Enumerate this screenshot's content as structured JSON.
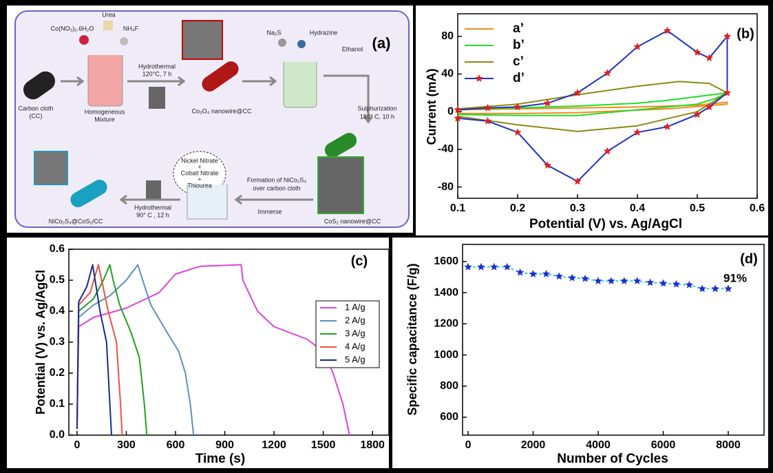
{
  "diagram": {
    "labels": [
      "Co(NO₃)₂.6H₂O",
      "Urea",
      "NH₄F",
      "Carbon cloth",
      "(CC)",
      "Homogeneous",
      "Mixture",
      "Hydrothermal",
      "120°C, 7 h",
      "Co₃O₄ nanowire@CC",
      "Na₂S",
      "Hydrazine",
      "Ethanol",
      "(a)",
      "Sulphurization",
      "180° C, 10 h",
      "Nickel Nitrate",
      "+",
      "Cobalt Nitrate",
      "+",
      "Thiourea",
      "Formation of NiCo₂S₄",
      "over carbon cloth",
      "Immerse",
      "CoS₂ nanowire@CC",
      "Hydrothermal",
      "90° C , 12 h",
      "NiCo₂S₄@CoS₂/CC"
    ]
  },
  "chart_data": [
    {
      "type": "line",
      "panel_label": "(b)",
      "x_label": "Potential (V) vs. Ag/AgCl",
      "y_label": "Current (mA)",
      "xlim": [
        0.1,
        0.6
      ],
      "xticks": [
        0.1,
        0.2,
        0.3,
        0.4,
        0.5,
        0.6
      ],
      "ylim": [
        -92,
        104
      ],
      "yticks": [
        -80,
        -40,
        0,
        40,
        80
      ],
      "legend": "upper left",
      "series": [
        {
          "name": "a’",
          "color": "#f08a20",
          "x": [
            0.1,
            0.2,
            0.3,
            0.4,
            0.5,
            0.55,
            0.55,
            0.45,
            0.3,
            0.2,
            0.1
          ],
          "values": [
            2,
            3,
            4,
            5,
            7,
            10,
            8,
            3,
            -1,
            -2,
            -2
          ]
        },
        {
          "name": "b’",
          "color": "#22dd22",
          "x": [
            0.1,
            0.2,
            0.3,
            0.4,
            0.45,
            0.5,
            0.55,
            0.53,
            0.5,
            0.4,
            0.3,
            0.2,
            0.1
          ],
          "values": [
            3,
            4,
            6,
            9,
            12,
            16,
            20,
            14,
            8,
            2,
            -4,
            -4,
            -3
          ]
        },
        {
          "name": "c’",
          "color": "#8a8a10",
          "x": [
            0.1,
            0.2,
            0.3,
            0.4,
            0.47,
            0.52,
            0.55,
            0.5,
            0.4,
            0.3,
            0.2,
            0.1
          ],
          "values": [
            3,
            8,
            18,
            27,
            32,
            30,
            20,
            0,
            -15,
            -21,
            -14,
            -5
          ]
        },
        {
          "name": "d’",
          "color": "#2030c0",
          "marker": "star",
          "marker_color": "#e02020",
          "x": [
            0.1,
            0.15,
            0.2,
            0.25,
            0.3,
            0.35,
            0.4,
            0.45,
            0.5,
            0.52,
            0.55,
            0.55,
            0.52,
            0.5,
            0.45,
            0.4,
            0.35,
            0.3,
            0.25,
            0.2,
            0.15,
            0.1
          ],
          "values": [
            2,
            4,
            5,
            9,
            20,
            41,
            69,
            86,
            63,
            57,
            80,
            20,
            5,
            -3,
            -16,
            -22,
            -42,
            -74,
            -57,
            -22,
            -10,
            -7
          ]
        }
      ]
    },
    {
      "type": "line",
      "panel_label": "(c)",
      "x_label": "Time (s)",
      "y_label": "Potential (V) vs. Ag/AgCl",
      "xlim": [
        -50,
        1900
      ],
      "xticks": [
        0,
        300,
        600,
        900,
        1200,
        1500,
        1800
      ],
      "ylim": [
        0,
        0.6
      ],
      "yticks": [
        {
          "value": 0,
          "label": "0.0"
        },
        0.1,
        0.2,
        0.3,
        0.4,
        0.5,
        0.6
      ],
      "legend": "center right",
      "series": [
        {
          "name": "1 A/g",
          "color": "#e040e0",
          "x": [
            0,
            10,
            100,
            300,
            500,
            600,
            750,
            1000,
            1010,
            1100,
            1200,
            1400,
            1500,
            1560,
            1620,
            1660
          ],
          "values": [
            0.02,
            0.35,
            0.38,
            0.41,
            0.46,
            0.52,
            0.545,
            0.55,
            0.5,
            0.4,
            0.35,
            0.31,
            0.27,
            0.2,
            0.1,
            0
          ]
        },
        {
          "name": "2 A/g",
          "color": "#5a90c0",
          "x": [
            0,
            10,
            100,
            200,
            300,
            370,
            400,
            450,
            550,
            620,
            660,
            690,
            710
          ],
          "values": [
            0.02,
            0.38,
            0.42,
            0.45,
            0.5,
            0.55,
            0.5,
            0.42,
            0.33,
            0.27,
            0.2,
            0.1,
            0
          ]
        },
        {
          "name": "3 A/g",
          "color": "#20a020",
          "x": [
            0,
            10,
            100,
            160,
            200,
            220,
            260,
            330,
            380,
            410,
            425
          ],
          "values": [
            0.02,
            0.4,
            0.44,
            0.5,
            0.55,
            0.5,
            0.42,
            0.33,
            0.25,
            0.1,
            0
          ]
        },
        {
          "name": "4 A/g",
          "color": "#f05040",
          "x": [
            0,
            10,
            80,
            130,
            150,
            190,
            240,
            265,
            275
          ],
          "values": [
            0.02,
            0.42,
            0.46,
            0.55,
            0.5,
            0.4,
            0.3,
            0.1,
            0
          ]
        },
        {
          "name": "5 A/g",
          "color": "#1a2a8a",
          "x": [
            0,
            10,
            60,
            95,
            110,
            140,
            180,
            200,
            210
          ],
          "values": [
            0.02,
            0.43,
            0.48,
            0.55,
            0.5,
            0.4,
            0.3,
            0.1,
            0
          ]
        }
      ]
    },
    {
      "type": "line",
      "panel_label": "(d)",
      "annotation": "91%",
      "x_label": "Number of Cycles",
      "y_label": "Specific capacitance (F/g)",
      "xlim": [
        -170,
        9100
      ],
      "xticks": [
        0,
        2000,
        4000,
        6000,
        8000
      ],
      "ylim": [
        485,
        1710
      ],
      "yticks": [
        600,
        800,
        1000,
        1200,
        1400,
        1600
      ],
      "series": [
        {
          "color": "#40c8d8",
          "linestyle": "dashed",
          "marker": "star",
          "marker_color": "#1a2fd0",
          "x": [
            0,
            400,
            800,
            1200,
            1600,
            2000,
            2400,
            2800,
            3200,
            3600,
            4000,
            4400,
            4800,
            5200,
            5600,
            6000,
            6400,
            6800,
            7200,
            7600,
            8000
          ],
          "values": [
            1565,
            1565,
            1565,
            1565,
            1530,
            1520,
            1520,
            1505,
            1495,
            1490,
            1475,
            1475,
            1475,
            1475,
            1465,
            1460,
            1455,
            1450,
            1425,
            1425,
            1425
          ]
        }
      ]
    }
  ]
}
